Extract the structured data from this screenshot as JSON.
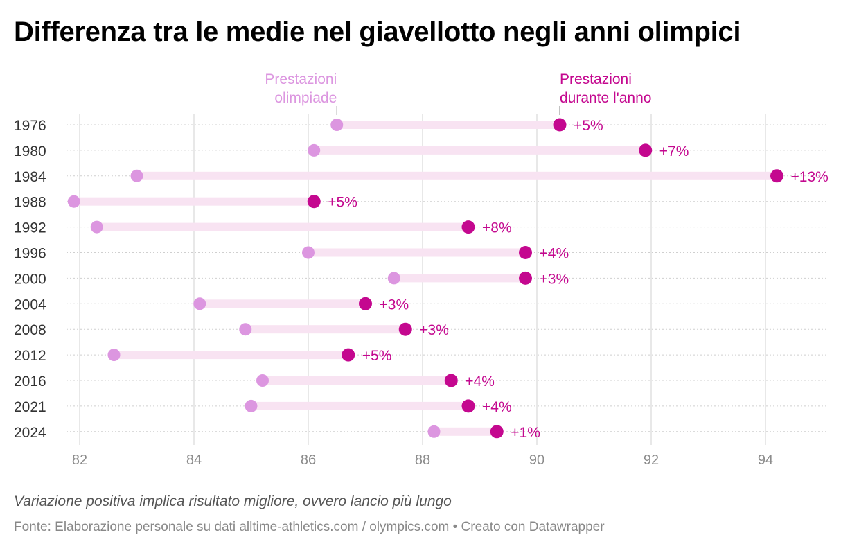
{
  "title": "Differenza tra le medie nel giavellotto negli anni olimpici",
  "note": "Variazione positiva implica risultato migliore, ovvero lancio più lungo",
  "source": "Fonte: Elaborazione personale su dati alltime-athletics.com / olympics.com • Creato con Datawrapper",
  "colors": {
    "olympic": "#dc96e0",
    "season": "#c4088f",
    "bar": "#f8e3f2",
    "grid": "#d9d9d9",
    "axis_text": "#8c8c8c"
  },
  "chart_data": {
    "type": "dot",
    "categories": [
      "1976",
      "1980",
      "1984",
      "1988",
      "1992",
      "1996",
      "2000",
      "2004",
      "2008",
      "2012",
      "2016",
      "2021",
      "2024"
    ],
    "series": [
      {
        "name": "Prestazioni olimpiade",
        "values": [
          86.5,
          86.1,
          83.0,
          81.9,
          82.3,
          86.0,
          87.5,
          84.1,
          84.9,
          82.6,
          85.2,
          85.0,
          88.2
        ]
      },
      {
        "name": "Prestazioni durante l'anno",
        "values": [
          90.4,
          91.9,
          94.2,
          86.1,
          88.8,
          89.8,
          89.8,
          87.0,
          87.7,
          86.7,
          88.5,
          88.8,
          89.3
        ]
      }
    ],
    "labels": [
      "+5%",
      "+7%",
      "+13%",
      "+5%",
      "+8%",
      "+4%",
      "+3%",
      "+3%",
      "+3%",
      "+5%",
      "+4%",
      "+4%",
      "+1%"
    ],
    "series_labels": {
      "olympic": [
        "Prestazioni",
        "olimpiade"
      ],
      "season": [
        "Prestazioni",
        "durante l'anno"
      ]
    },
    "x_ticks": [
      82,
      84,
      86,
      88,
      90,
      92,
      94
    ],
    "xlim": [
      81.6,
      95.0
    ],
    "grid": true
  }
}
